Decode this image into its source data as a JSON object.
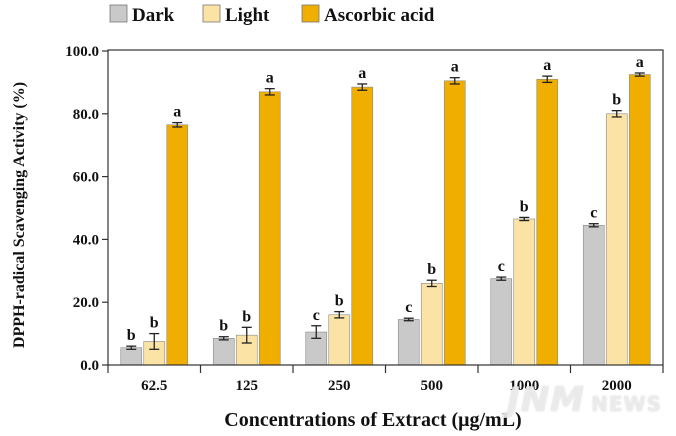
{
  "chart_data": {
    "type": "bar",
    "title": "",
    "xlabel": "Concentrations of Extract (μg/mL)",
    "ylabel": "DPPH-radical Scavenging Activity (%)",
    "ylim": [
      0,
      100
    ],
    "yticks": [
      "0.0",
      "20.0",
      "40.0",
      "60.0",
      "80.0",
      "100.0"
    ],
    "ytick_values": [
      0,
      20,
      40,
      60,
      80,
      100
    ],
    "categories": [
      "62.5",
      "125",
      "250",
      "500",
      "1000",
      "2000"
    ],
    "legend_position": "top",
    "series": [
      {
        "name": "Dark",
        "color": "#c9c9c9",
        "values": [
          5.5,
          8.5,
          10.5,
          14.5,
          27.5,
          44.5
        ],
        "errors": [
          0.5,
          0.5,
          2.0,
          0.4,
          0.5,
          0.5
        ],
        "labels": [
          "b",
          "b",
          "c",
          "c",
          "c",
          "c"
        ]
      },
      {
        "name": "Light",
        "color": "#fbe3a6",
        "values": [
          7.5,
          9.5,
          16.0,
          26.0,
          46.5,
          80.0
        ],
        "errors": [
          2.5,
          2.5,
          1.0,
          1.0,
          0.5,
          1.0
        ],
        "labels": [
          "b",
          "b",
          "b",
          "b",
          "b",
          "b"
        ]
      },
      {
        "name": "Ascorbic acid",
        "color": "#f0ae00",
        "values": [
          76.5,
          87.0,
          88.5,
          90.5,
          91.0,
          92.5
        ],
        "errors": [
          0.7,
          1.0,
          1.0,
          1.0,
          1.0,
          0.5
        ],
        "labels": [
          "a",
          "a",
          "a",
          "a",
          "a",
          "a"
        ]
      }
    ]
  },
  "watermark": {
    "main": "JNM",
    "sub": "NEWS"
  }
}
